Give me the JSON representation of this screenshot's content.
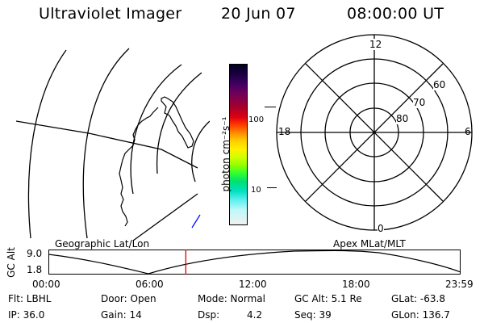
{
  "header": {
    "title": "Ultraviolet Imager",
    "date": "20 Jun 07",
    "time": "08:00:00 UT"
  },
  "colorbar": {
    "unit_label": "photon cm⁻²s⁻¹",
    "tick_100": "100",
    "tick_10": "10"
  },
  "polar_plot": {
    "mlt_12": "12",
    "mlt_18": "18",
    "mlt_6": "6",
    "mlt_0": "0",
    "lat_60": "60",
    "lat_70": "70",
    "lat_80": "80"
  },
  "map_labels": {
    "left": "Geographic Lat/Lon",
    "right": "Apex MLat/MLT"
  },
  "altitude_plot": {
    "ylabel": "GC Alt",
    "ymax": "9.0",
    "ymin": "1.8",
    "x_ticks": [
      "00:00",
      "06:00",
      "12:00",
      "18:00",
      "23:59"
    ],
    "current_marker_hour": 8.0
  },
  "info": {
    "flt": "Flt: LBHL",
    "ip": "IP: 36.0",
    "door": "Door: Open",
    "gain": "Gain: 14",
    "mode": "Mode: Normal",
    "dsp_label": "Dsp:",
    "dsp_value": "4.2",
    "gc_alt": "GC Alt: 5.1 Re",
    "seq": "Seq: 39",
    "glat": "GLat: -63.8",
    "glon": "GLon: 136.7"
  },
  "colors": {
    "marker": "#e00000",
    "line": "#000000"
  }
}
